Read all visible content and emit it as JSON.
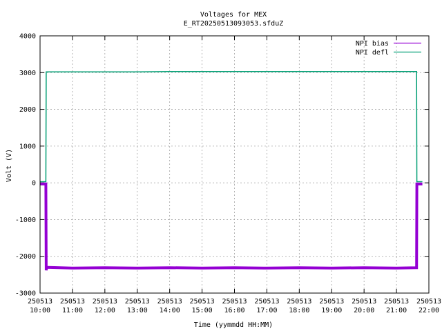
{
  "chart_data": {
    "type": "line",
    "title": "Voltages for MEX",
    "subtitle": "E_RT20250513093053.sfduZ",
    "xlabel": "Time (yymmdd HH:MM)",
    "ylabel": "Volt (V)",
    "xlim_hours": [
      10,
      22
    ],
    "ylim": [
      -3000,
      4000
    ],
    "yticks": [
      -3000,
      -2000,
      -1000,
      0,
      1000,
      2000,
      3000,
      4000
    ],
    "yticklabels": [
      "-3000",
      "-2000",
      "-1000",
      "0",
      "1000",
      "2000",
      "3000",
      "4000"
    ],
    "xticks": [
      10,
      11,
      12,
      13,
      14,
      15,
      16,
      17,
      18,
      19,
      20,
      21,
      22
    ],
    "xticklabels": [
      {
        "date": "250513",
        "time": "10:00"
      },
      {
        "date": "250513",
        "time": "11:00"
      },
      {
        "date": "250513",
        "time": "12:00"
      },
      {
        "date": "250513",
        "time": "13:00"
      },
      {
        "date": "250513",
        "time": "14:00"
      },
      {
        "date": "250513",
        "time": "15:00"
      },
      {
        "date": "250513",
        "time": "16:00"
      },
      {
        "date": "250513",
        "time": "17:00"
      },
      {
        "date": "250513",
        "time": "18:00"
      },
      {
        "date": "250513",
        "time": "19:00"
      },
      {
        "date": "250513",
        "time": "20:00"
      },
      {
        "date": "250513",
        "time": "21:00"
      },
      {
        "date": "250513",
        "time": "22:00"
      }
    ],
    "grid": true,
    "legend_position": "top-right",
    "series": [
      {
        "name": "NPI bias",
        "color": "#9400d3",
        "x": [
          10.0,
          10.18,
          10.19,
          10.2,
          11.0,
          12.0,
          13.0,
          14.0,
          15.0,
          16.0,
          17.0,
          18.0,
          19.0,
          20.0,
          21.0,
          21.6,
          21.62,
          21.63,
          21.8
        ],
        "y": [
          -30,
          -30,
          -2380,
          -2300,
          -2320,
          -2310,
          -2320,
          -2310,
          -2320,
          -2310,
          -2320,
          -2310,
          -2320,
          -2310,
          -2320,
          -2310,
          -2310,
          -30,
          -30
        ]
      },
      {
        "name": "NPI defl",
        "color": "#009e73",
        "x": [
          10.0,
          10.18,
          10.19,
          11.0,
          12.0,
          13.0,
          14.0,
          15.0,
          16.0,
          17.0,
          18.0,
          19.0,
          20.0,
          21.0,
          21.62,
          21.63,
          21.8
        ],
        "y": [
          30,
          30,
          3020,
          3020,
          3020,
          3020,
          3030,
          3030,
          3030,
          3030,
          3030,
          3030,
          3030,
          3030,
          3030,
          30,
          30
        ]
      }
    ]
  }
}
